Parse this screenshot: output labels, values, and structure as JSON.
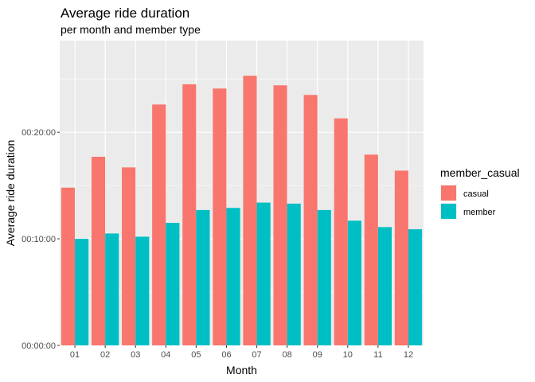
{
  "chart_data": {
    "type": "bar",
    "title": "Average ride duration",
    "subtitle": "per month and member type",
    "xlabel": "Month",
    "ylabel": "Average ride duration",
    "categories": [
      "01",
      "02",
      "03",
      "04",
      "05",
      "06",
      "07",
      "08",
      "09",
      "10",
      "11",
      "12"
    ],
    "y_unit": "minutes",
    "y_ticks": [
      {
        "value": 0,
        "label": "00:00:00"
      },
      {
        "value": 10,
        "label": "00:10:00"
      },
      {
        "value": 20,
        "label": "00:20:00"
      }
    ],
    "ylim": [
      0,
      28.6
    ],
    "grid": true,
    "legend": {
      "title": "member_casual",
      "position": "right"
    },
    "series": [
      {
        "name": "casual",
        "color": "#F8766D",
        "values": [
          14.8,
          17.7,
          16.7,
          22.6,
          24.5,
          24.1,
          25.3,
          24.4,
          23.5,
          21.3,
          17.9,
          16.4
        ]
      },
      {
        "name": "member",
        "color": "#00BFC4",
        "values": [
          10.0,
          10.5,
          10.2,
          11.5,
          12.7,
          12.9,
          13.4,
          13.3,
          12.7,
          11.7,
          11.1,
          10.9
        ]
      }
    ]
  }
}
